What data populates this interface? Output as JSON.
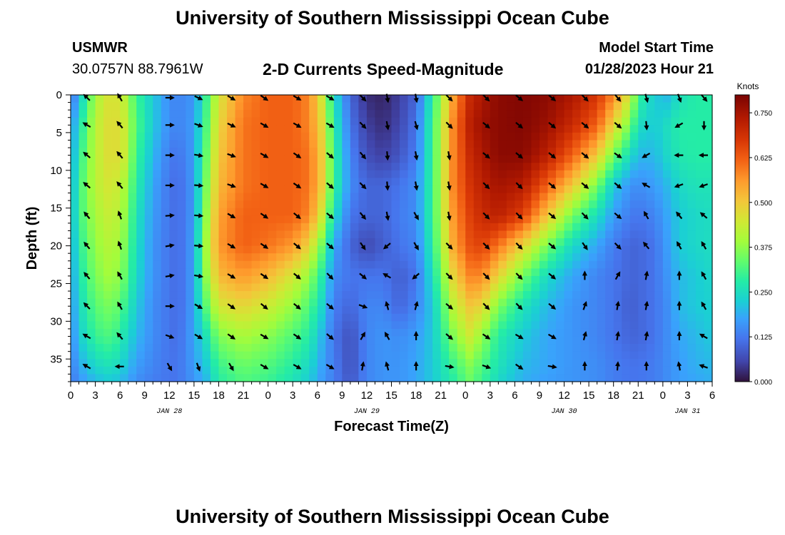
{
  "header": {
    "title": "University of Southern Mississippi Ocean Cube",
    "station": "USMWR",
    "coordinates": "30.0757N  88.7961W",
    "subtitle": "2-D Currents Speed-Magnitude",
    "model_start_label": "Model Start Time",
    "model_start_value": "01/28/2023 Hour 21"
  },
  "footer": {
    "title": "University of Southern Mississippi Ocean Cube"
  },
  "chart_data": {
    "type": "heatmap",
    "title": "2-D Currents Speed-Magnitude",
    "xlabel": "Forecast Time(Z)",
    "ylabel": "Depth (ft)",
    "x_tick_labels": [
      "0",
      "3",
      "6",
      "9",
      "12",
      "15",
      "18",
      "21",
      "0",
      "3",
      "6",
      "9",
      "12",
      "15",
      "18",
      "21",
      "0",
      "3",
      "6",
      "9",
      "12",
      "15",
      "18",
      "21",
      "0",
      "3",
      "6"
    ],
    "x_range_hours": [
      0,
      78
    ],
    "day_labels": [
      {
        "label": "JAN 28",
        "hour": 12
      },
      {
        "label": "JAN 29",
        "hour": 36
      },
      {
        "label": "JAN 30",
        "hour": 60
      },
      {
        "label": "JAN 31",
        "hour": 75
      }
    ],
    "y_ticks": [
      0,
      5,
      10,
      15,
      20,
      25,
      30,
      35
    ],
    "ylim": [
      0,
      38
    ],
    "colorbar": {
      "label": "Knots",
      "ticks": [
        "0.000",
        "0.125",
        "0.250",
        "0.375",
        "0.500",
        "0.625",
        "0.750"
      ],
      "range": [
        0,
        0.8
      ]
    },
    "speed_hours": [
      0,
      1,
      3,
      5,
      6.5,
      8,
      10,
      12,
      13,
      14,
      15,
      16.5,
      18,
      21,
      24,
      27,
      29,
      30.5,
      32,
      34,
      36,
      38,
      40,
      42,
      44,
      46.5,
      48.5,
      50,
      52,
      55,
      58,
      61,
      64,
      66,
      68,
      69,
      71,
      72.5,
      74,
      76,
      78
    ],
    "speed_depths": [
      0,
      4,
      8,
      12,
      16,
      20,
      24,
      28,
      32,
      36,
      38
    ],
    "speed_knots": [
      [
        0.1,
        0.2,
        0.4,
        0.47,
        0.42,
        0.3,
        0.22,
        0.15,
        0.14,
        0.15,
        0.16,
        0.3,
        0.45,
        0.58,
        0.62,
        0.62,
        0.58,
        0.45,
        0.25,
        0.1,
        0.03,
        0.02,
        0.05,
        0.1,
        0.28,
        0.55,
        0.7,
        0.74,
        0.78,
        0.79,
        0.78,
        0.74,
        0.68,
        0.58,
        0.45,
        0.3,
        0.22,
        0.2,
        0.25,
        0.28,
        0.28
      ],
      [
        0.15,
        0.25,
        0.42,
        0.48,
        0.44,
        0.32,
        0.22,
        0.15,
        0.14,
        0.15,
        0.17,
        0.32,
        0.48,
        0.6,
        0.62,
        0.62,
        0.58,
        0.48,
        0.28,
        0.12,
        0.05,
        0.03,
        0.06,
        0.12,
        0.3,
        0.58,
        0.72,
        0.76,
        0.78,
        0.79,
        0.76,
        0.7,
        0.62,
        0.48,
        0.35,
        0.25,
        0.22,
        0.25,
        0.28,
        0.28,
        0.28
      ],
      [
        0.16,
        0.28,
        0.42,
        0.48,
        0.44,
        0.3,
        0.2,
        0.13,
        0.12,
        0.14,
        0.17,
        0.34,
        0.5,
        0.6,
        0.62,
        0.62,
        0.6,
        0.5,
        0.3,
        0.14,
        0.07,
        0.05,
        0.08,
        0.13,
        0.3,
        0.58,
        0.7,
        0.74,
        0.78,
        0.78,
        0.72,
        0.62,
        0.5,
        0.35,
        0.25,
        0.2,
        0.2,
        0.24,
        0.27,
        0.28,
        0.28
      ],
      [
        0.17,
        0.3,
        0.42,
        0.46,
        0.4,
        0.28,
        0.18,
        0.12,
        0.11,
        0.13,
        0.17,
        0.36,
        0.52,
        0.6,
        0.62,
        0.62,
        0.6,
        0.5,
        0.3,
        0.15,
        0.1,
        0.1,
        0.12,
        0.15,
        0.3,
        0.58,
        0.68,
        0.72,
        0.75,
        0.73,
        0.62,
        0.5,
        0.35,
        0.22,
        0.16,
        0.15,
        0.17,
        0.2,
        0.24,
        0.26,
        0.26
      ],
      [
        0.18,
        0.3,
        0.4,
        0.44,
        0.38,
        0.26,
        0.17,
        0.12,
        0.11,
        0.13,
        0.17,
        0.38,
        0.55,
        0.62,
        0.62,
        0.62,
        0.58,
        0.45,
        0.25,
        0.12,
        0.1,
        0.1,
        0.13,
        0.15,
        0.3,
        0.56,
        0.66,
        0.7,
        0.72,
        0.66,
        0.5,
        0.35,
        0.25,
        0.17,
        0.13,
        0.12,
        0.14,
        0.18,
        0.22,
        0.24,
        0.25
      ],
      [
        0.17,
        0.28,
        0.38,
        0.42,
        0.36,
        0.25,
        0.16,
        0.12,
        0.11,
        0.13,
        0.18,
        0.4,
        0.56,
        0.62,
        0.6,
        0.56,
        0.48,
        0.35,
        0.18,
        0.1,
        0.06,
        0.09,
        0.12,
        0.14,
        0.28,
        0.54,
        0.64,
        0.66,
        0.6,
        0.48,
        0.35,
        0.24,
        0.18,
        0.13,
        0.1,
        0.1,
        0.12,
        0.17,
        0.22,
        0.24,
        0.25
      ],
      [
        0.16,
        0.26,
        0.36,
        0.4,
        0.34,
        0.24,
        0.16,
        0.12,
        0.11,
        0.13,
        0.18,
        0.38,
        0.52,
        0.56,
        0.52,
        0.45,
        0.38,
        0.28,
        0.15,
        0.12,
        0.12,
        0.12,
        0.09,
        0.12,
        0.25,
        0.48,
        0.58,
        0.58,
        0.48,
        0.35,
        0.24,
        0.18,
        0.14,
        0.12,
        0.1,
        0.1,
        0.12,
        0.16,
        0.2,
        0.22,
        0.24
      ],
      [
        0.15,
        0.24,
        0.33,
        0.36,
        0.3,
        0.22,
        0.15,
        0.12,
        0.11,
        0.13,
        0.18,
        0.33,
        0.45,
        0.48,
        0.44,
        0.38,
        0.32,
        0.24,
        0.13,
        0.1,
        0.14,
        0.14,
        0.1,
        0.14,
        0.22,
        0.42,
        0.5,
        0.48,
        0.36,
        0.26,
        0.2,
        0.16,
        0.14,
        0.12,
        0.09,
        0.1,
        0.12,
        0.15,
        0.2,
        0.22,
        0.23
      ],
      [
        0.14,
        0.22,
        0.3,
        0.32,
        0.26,
        0.2,
        0.15,
        0.12,
        0.11,
        0.14,
        0.18,
        0.26,
        0.36,
        0.4,
        0.37,
        0.32,
        0.28,
        0.2,
        0.12,
        0.07,
        0.14,
        0.16,
        0.15,
        0.17,
        0.22,
        0.36,
        0.44,
        0.38,
        0.28,
        0.22,
        0.18,
        0.16,
        0.14,
        0.12,
        0.1,
        0.1,
        0.12,
        0.15,
        0.18,
        0.2,
        0.22
      ],
      [
        0.13,
        0.18,
        0.24,
        0.26,
        0.22,
        0.17,
        0.14,
        0.12,
        0.12,
        0.14,
        0.17,
        0.22,
        0.3,
        0.34,
        0.32,
        0.28,
        0.24,
        0.18,
        0.13,
        0.07,
        0.14,
        0.16,
        0.16,
        0.18,
        0.22,
        0.3,
        0.36,
        0.32,
        0.26,
        0.2,
        0.18,
        0.16,
        0.15,
        0.13,
        0.12,
        0.12,
        0.13,
        0.15,
        0.17,
        0.19,
        0.2
      ],
      [
        0.12,
        0.16,
        0.2,
        0.22,
        0.19,
        0.15,
        0.13,
        0.12,
        0.12,
        0.14,
        0.16,
        0.2,
        0.28,
        0.32,
        0.3,
        0.26,
        0.22,
        0.17,
        0.13,
        0.08,
        0.14,
        0.16,
        0.16,
        0.18,
        0.22,
        0.28,
        0.34,
        0.3,
        0.24,
        0.19,
        0.17,
        0.16,
        0.15,
        0.13,
        0.12,
        0.12,
        0.13,
        0.15,
        0.17,
        0.18,
        0.19
      ]
    ],
    "arrow_hours": [
      2,
      6,
      12,
      15.5,
      19.5,
      23.5,
      27.5,
      31.5,
      35.5,
      38.5,
      42,
      46,
      50.5,
      54.5,
      58.5,
      62.5,
      66.5,
      70,
      74,
      77
    ],
    "arrow_depths": [
      0,
      4,
      8,
      12,
      16,
      20,
      24,
      28,
      32,
      36
    ],
    "arrow_dirs_deg": [
      [
        315,
        330,
        90,
        115,
        120,
        125,
        120,
        120,
        135,
        170,
        170,
        135,
        135,
        130,
        130,
        135,
        140,
        165,
        160,
        140
      ],
      [
        300,
        320,
        90,
        110,
        115,
        120,
        120,
        120,
        135,
        170,
        165,
        135,
        130,
        130,
        130,
        130,
        130,
        175,
        240,
        180
      ],
      [
        310,
        320,
        90,
        100,
        110,
        120,
        125,
        130,
        140,
        175,
        170,
        170,
        130,
        130,
        130,
        130,
        125,
        240,
        270,
        270
      ],
      [
        310,
        320,
        90,
        95,
        110,
        120,
        125,
        130,
        135,
        175,
        170,
        170,
        135,
        135,
        130,
        130,
        130,
        300,
        250,
        250
      ],
      [
        320,
        340,
        85,
        95,
        120,
        125,
        130,
        130,
        140,
        170,
        150,
        170,
        135,
        135,
        130,
        135,
        130,
        330,
        320,
        310
      ],
      [
        320,
        340,
        80,
        95,
        120,
        125,
        130,
        130,
        145,
        230,
        150,
        135,
        135,
        135,
        130,
        145,
        135,
        320,
        330,
        330
      ],
      [
        320,
        330,
        80,
        100,
        120,
        125,
        130,
        135,
        130,
        300,
        230,
        135,
        135,
        135,
        130,
        0,
        30,
        10,
        0,
        330
      ],
      [
        315,
        330,
        90,
        120,
        125,
        130,
        130,
        130,
        110,
        345,
        15,
        130,
        135,
        135,
        130,
        20,
        10,
        10,
        0,
        330
      ],
      [
        300,
        320,
        110,
        120,
        125,
        120,
        125,
        130,
        30,
        330,
        0,
        130,
        125,
        120,
        120,
        15,
        10,
        10,
        0,
        300
      ],
      [
        300,
        270,
        150,
        160,
        150,
        120,
        120,
        120,
        10,
        345,
        0,
        100,
        110,
        125,
        100,
        0,
        5,
        0,
        350,
        290
      ]
    ]
  }
}
